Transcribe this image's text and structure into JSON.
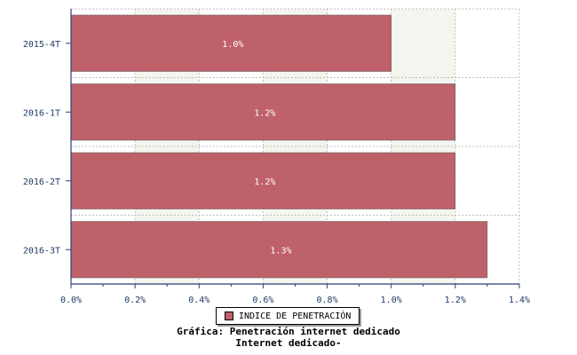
{
  "chart_data": {
    "type": "bar",
    "orientation": "horizontal",
    "categories": [
      "2015-4T",
      "2016-1T",
      "2016-2T",
      "2016-3T"
    ],
    "series": [
      {
        "name": "INDICE DE PENETRACIÓN",
        "values": [
          1.0,
          1.2,
          1.2,
          1.3
        ],
        "value_labels": [
          "1.0%",
          "1.2%",
          "1.2%",
          "1.3%"
        ],
        "color": "#bf616a"
      }
    ],
    "x_ticks": [
      "0.0%",
      "0.2%",
      "0.4%",
      "0.6%",
      "0.8%",
      "1.0%",
      "1.2%",
      "1.4%"
    ],
    "xlim": [
      0,
      1.4
    ],
    "grid": true,
    "legend": "bottom"
  },
  "caption": {
    "line1": "Gráfica: Penetración internet dedicado",
    "line2": "Internet dedicado-"
  },
  "colors": {
    "bar": "#bf616a",
    "axis": "#2b3f73",
    "band": "#f5f5f0",
    "grid": "#bdbdbd"
  }
}
